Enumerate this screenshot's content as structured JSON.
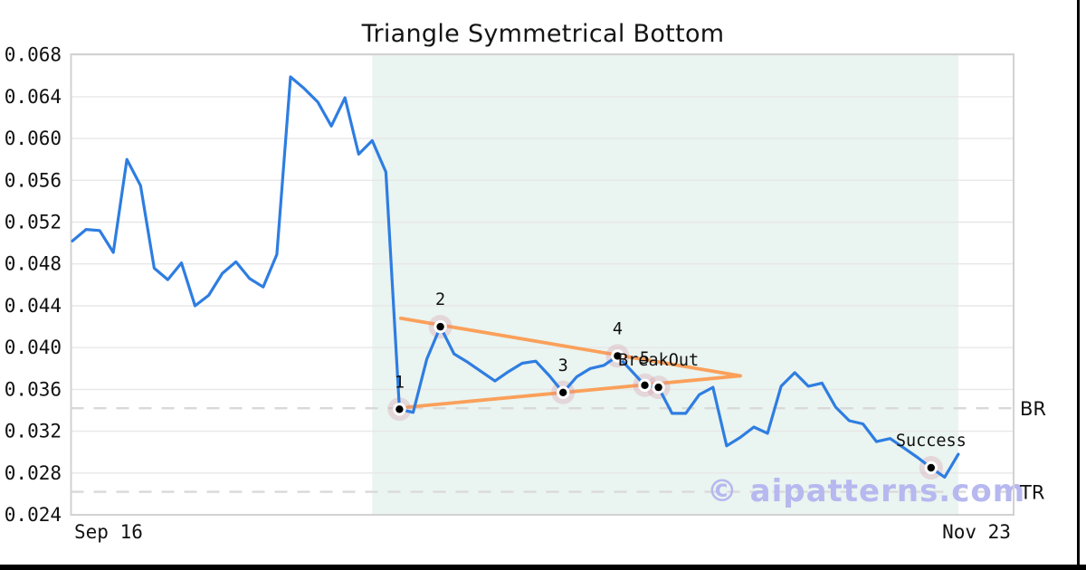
{
  "title": "Triangle Symmetrical Bottom",
  "watermark": "© aipatterns.com",
  "chart_data": {
    "type": "line",
    "title": "Triangle Symmetrical Bottom",
    "x_tick_labels": [
      "Sep 16",
      "Nov 23"
    ],
    "y_tick_labels": [
      "0.024",
      "0.028",
      "0.032",
      "0.036",
      "0.040",
      "0.044",
      "0.048",
      "0.052",
      "0.056",
      "0.060",
      "0.064",
      "0.068"
    ],
    "ylim": [
      0.024,
      0.068
    ],
    "grid": "horizontal",
    "series": [
      {
        "name": "price",
        "values": [
          0.0502,
          0.0513,
          0.0512,
          0.0491,
          0.058,
          0.0555,
          0.0476,
          0.0465,
          0.0481,
          0.044,
          0.045,
          0.0471,
          0.0482,
          0.0466,
          0.0458,
          0.0489,
          0.0659,
          0.0648,
          0.0635,
          0.0612,
          0.0639,
          0.0585,
          0.0598,
          0.0568,
          0.0341,
          0.0338,
          0.0389,
          0.042,
          0.0394,
          0.0386,
          0.0377,
          0.0368,
          0.0377,
          0.0385,
          0.0387,
          0.0373,
          0.0357,
          0.0372,
          0.038,
          0.0383,
          0.0392,
          0.0378,
          0.0364,
          0.0362,
          0.0337,
          0.0337,
          0.0355,
          0.0362,
          0.0306,
          0.0314,
          0.0324,
          0.0318,
          0.0363,
          0.0376,
          0.0363,
          0.0366,
          0.0343,
          0.033,
          0.0327,
          0.031,
          0.0313,
          0.0304,
          0.0295,
          0.0285,
          0.0276,
          0.0298
        ]
      }
    ],
    "markers": [
      {
        "day": 24,
        "label": "1"
      },
      {
        "day": 27,
        "label": "2"
      },
      {
        "day": 36,
        "label": "3"
      },
      {
        "day": 40,
        "label": "4"
      },
      {
        "day": 42,
        "label": "5"
      },
      {
        "day": 43,
        "label": "BreakOut"
      },
      {
        "day": 63,
        "label": "Success"
      }
    ],
    "trendlines": [
      {
        "name": "upper",
        "d1": 24.1,
        "v1": 0.0428,
        "d2": 49.0,
        "v2": 0.0373
      },
      {
        "name": "lower",
        "d1": 24.6,
        "v1": 0.0343,
        "d2": 49.0,
        "v2": 0.0373
      }
    ],
    "hlines": [
      {
        "label": "BR",
        "value": 0.0342
      },
      {
        "label": "TR",
        "value": 0.0262
      }
    ],
    "pattern_zone": {
      "start_day": 22,
      "end_day": 65
    },
    "colors": {
      "line": "#2e7de1",
      "trend": "#faa05a",
      "zone": "#eaf4f0",
      "watermark": "#b6b8ef",
      "dash": "#d9d9d9",
      "grid": "#e7e7e7",
      "border": "#d2d2d2",
      "halo": "rgba(208,140,162,0.28)",
      "marker": "#000000",
      "text": "#111111"
    }
  }
}
